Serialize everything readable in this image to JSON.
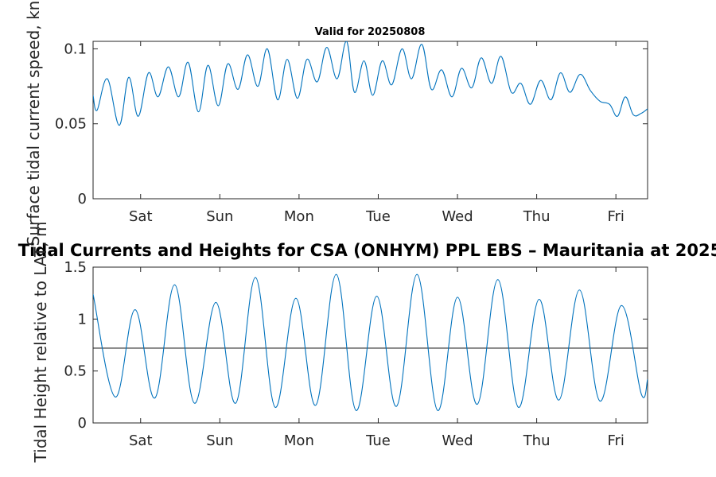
{
  "chart_data": [
    {
      "type": "line",
      "title": "Valid for 20250808",
      "ylabel": "Surface tidal current speed, kn",
      "xlabel": "",
      "xlim": [
        0,
        7
      ],
      "ylim": [
        0,
        0.105
      ],
      "yticks": [
        0,
        0.05,
        0.1
      ],
      "ytick_labels": [
        "0",
        "0.05",
        "0.1"
      ],
      "xticks": [
        0.6,
        1.6,
        2.6,
        3.6,
        4.6,
        5.6,
        6.6
      ],
      "xtick_labels": [
        "Sat",
        "Sun",
        "Mon",
        "Tue",
        "Wed",
        "Thu",
        "Fri"
      ],
      "grid": false,
      "series": [
        {
          "color": "#0072BD",
          "x": [
            0,
            0.05,
            0.18,
            0.33,
            0.45,
            0.57,
            0.7,
            0.82,
            0.95,
            1.08,
            1.2,
            1.33,
            1.45,
            1.58,
            1.7,
            1.83,
            1.95,
            2.08,
            2.2,
            2.33,
            2.45,
            2.58,
            2.7,
            2.83,
            2.95,
            3.08,
            3.2,
            3.3,
            3.42,
            3.53,
            3.65,
            3.77,
            3.9,
            4.02,
            4.15,
            4.27,
            4.4,
            4.53,
            4.65,
            4.78,
            4.9,
            5.03,
            5.15,
            5.28,
            5.4,
            5.52,
            5.65,
            5.78,
            5.9,
            6.02,
            6.15,
            6.28,
            6.4,
            6.52,
            6.62,
            6.72,
            6.82,
            6.92,
            7.0
          ],
          "values": [
            0.069,
            0.059,
            0.08,
            0.049,
            0.081,
            0.055,
            0.084,
            0.068,
            0.088,
            0.068,
            0.091,
            0.058,
            0.089,
            0.062,
            0.09,
            0.073,
            0.096,
            0.075,
            0.1,
            0.066,
            0.093,
            0.067,
            0.093,
            0.078,
            0.101,
            0.08,
            0.105,
            0.071,
            0.092,
            0.069,
            0.092,
            0.076,
            0.1,
            0.08,
            0.103,
            0.073,
            0.086,
            0.068,
            0.087,
            0.074,
            0.094,
            0.077,
            0.095,
            0.071,
            0.077,
            0.063,
            0.079,
            0.066,
            0.084,
            0.071,
            0.083,
            0.072,
            0.065,
            0.063,
            0.055,
            0.068,
            0.056,
            0.057,
            0.06
          ]
        }
      ]
    },
    {
      "type": "line",
      "title": "Tidal Currents and Heights for CSA (ONHYM) PPL EBS  – Mauritania at 2025",
      "ylabel": "Tidal Height relative to LAT, m",
      "xlabel": "",
      "xlim": [
        0,
        7
      ],
      "ylim": [
        0,
        1.5
      ],
      "yticks": [
        0,
        0.5,
        1,
        1.5
      ],
      "ytick_labels": [
        "0",
        "0.5",
        "1",
        "1.5"
      ],
      "xticks": [
        0.6,
        1.6,
        2.6,
        3.6,
        4.6,
        5.6,
        6.6
      ],
      "xtick_labels": [
        "Sat",
        "Sun",
        "Mon",
        "Tue",
        "Wed",
        "Thu",
        "Fri"
      ],
      "grid": false,
      "reference_line": 0.72,
      "series": [
        {
          "color": "#0072BD",
          "x": [
            0,
            0.28,
            0.53,
            0.78,
            1.03,
            1.28,
            1.55,
            1.8,
            2.05,
            2.3,
            2.56,
            2.81,
            3.07,
            3.32,
            3.58,
            3.83,
            4.09,
            4.35,
            4.6,
            4.85,
            5.11,
            5.37,
            5.63,
            5.88,
            6.14,
            6.4,
            6.67,
            6.92,
            7.0
          ],
          "values": [
            1.24,
            0.25,
            1.09,
            0.24,
            1.33,
            0.19,
            1.16,
            0.19,
            1.4,
            0.15,
            1.2,
            0.17,
            1.43,
            0.12,
            1.22,
            0.16,
            1.43,
            0.12,
            1.21,
            0.18,
            1.38,
            0.15,
            1.19,
            0.22,
            1.28,
            0.21,
            1.13,
            0.28,
            0.42
          ]
        }
      ]
    }
  ]
}
